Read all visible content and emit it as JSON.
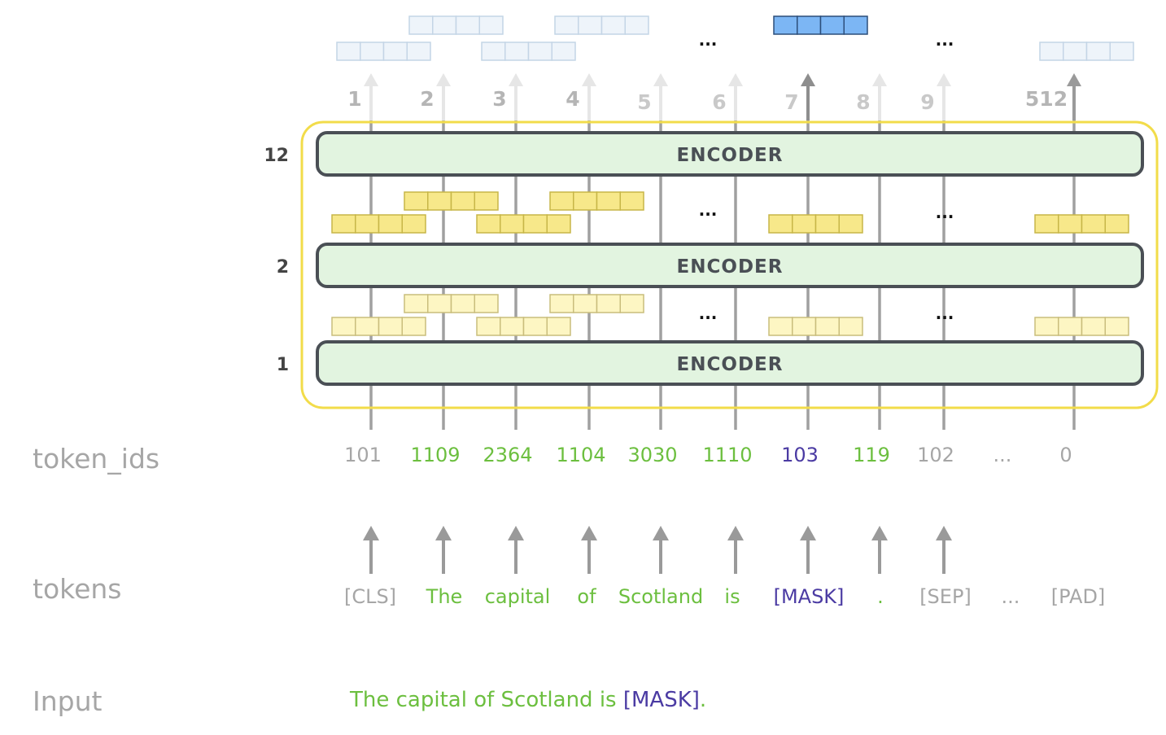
{
  "labels": {
    "token_ids": "token_ids",
    "tokens": "tokens",
    "input": "Input"
  },
  "input_sentence": {
    "text": "The capital of Scotland is ",
    "mask": "[MASK]",
    "end": "."
  },
  "encoder": {
    "label": "ENCODER",
    "layers": [
      "1",
      "2",
      "12"
    ]
  },
  "positions": [
    "1",
    "2",
    "3",
    "4",
    "5",
    "6",
    "7",
    "8",
    "9",
    "512"
  ],
  "ellipsis": "...",
  "columns": [
    {
      "token": "[CLS]",
      "id": "101",
      "kind": "special"
    },
    {
      "token": "The",
      "id": "1109",
      "kind": "word"
    },
    {
      "token": "capital",
      "id": "2364",
      "kind": "word"
    },
    {
      "token": "of",
      "id": "1104",
      "kind": "word"
    },
    {
      "token": "Scotland",
      "id": "3030",
      "kind": "word"
    },
    {
      "token": "is",
      "id": "1110",
      "kind": "word"
    },
    {
      "token": "[MASK]",
      "id": "103",
      "kind": "mask"
    },
    {
      "token": ".",
      "id": "119",
      "kind": "word"
    },
    {
      "token": "[SEP]",
      "id": "102",
      "kind": "special"
    },
    {
      "token": "...",
      "id": "...",
      "kind": "special"
    },
    {
      "token": "[PAD]",
      "id": "0",
      "kind": "special"
    }
  ],
  "colors": {
    "word": "#6cbf3f",
    "mask": "#4b3ba3",
    "special": "#a6a6a6",
    "encoder_fill": "#e2f4e0",
    "encoder_stroke": "#4a4f55",
    "group_border": "#f2dc4a",
    "vec_layer1": "#fdf6c3",
    "vec_layer2": "#f7e88a",
    "vec_output": "#eef4fa",
    "vec_mask_output": "#7cb6f4"
  }
}
